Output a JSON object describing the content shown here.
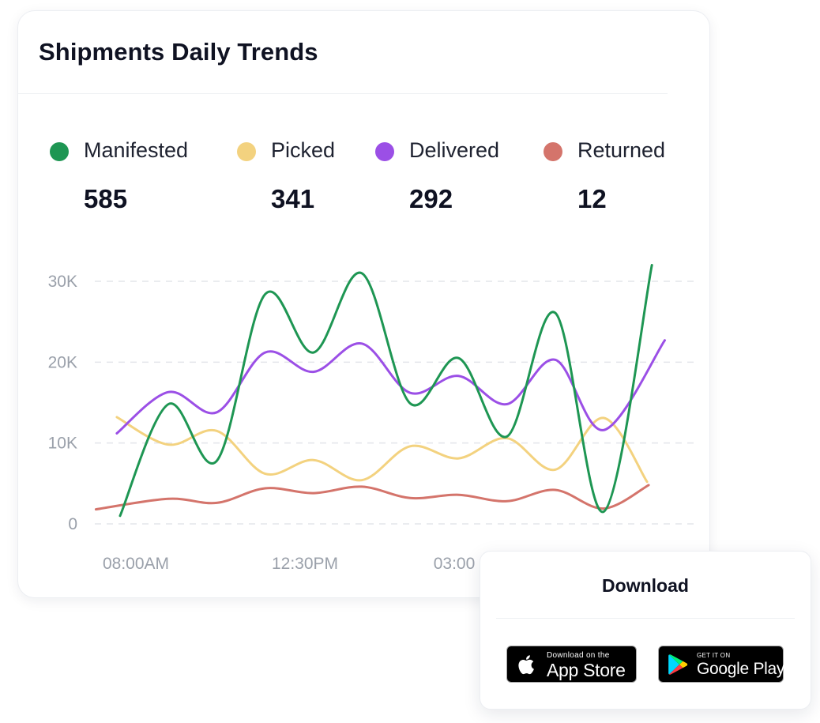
{
  "card": {
    "title": "Shipments Daily Trends"
  },
  "summary": [
    {
      "label": "Manifested",
      "value": "585",
      "color": "#1e9653"
    },
    {
      "label": "Picked",
      "value": "341",
      "color": "#f3d27f"
    },
    {
      "label": "Delivered",
      "value": "292",
      "color": "#9b4fe6"
    },
    {
      "label": "Returned",
      "value": "12",
      "color": "#d4746b"
    }
  ],
  "chart_data": {
    "type": "line",
    "x_tick_labels": [
      "08:00AM",
      "12:30PM",
      "03:00"
    ],
    "y_tick_labels": [
      "30K",
      "20K",
      "10K",
      "0"
    ],
    "ylim": [
      0,
      30000
    ],
    "grid": true,
    "grid_style": "dashed horizontal",
    "legend_placement": "top",
    "series": [
      {
        "name": "Manifested",
        "color": "#1e9653",
        "x": [
          0,
          3,
          6,
          9,
          12,
          15,
          18,
          21,
          24,
          27,
          30,
          33
        ],
        "values": [
          1000,
          14800,
          7800,
          28400,
          21200,
          31000,
          14900,
          20500,
          10800,
          26100,
          1500,
          32000
        ]
      },
      {
        "name": "Picked",
        "color": "#f3d27f",
        "x": [
          -0.2,
          3,
          6,
          9,
          12,
          15,
          18,
          21,
          24,
          27,
          30,
          32.7
        ],
        "values": [
          13200,
          9800,
          11500,
          6200,
          7900,
          5400,
          9600,
          8100,
          10600,
          6700,
          13100,
          5200
        ]
      },
      {
        "name": "Delivered",
        "color": "#9b4fe6",
        "x": [
          -0.2,
          3,
          6,
          9,
          12,
          15,
          18,
          21,
          24,
          27,
          30,
          33.8
        ],
        "values": [
          11200,
          16300,
          13800,
          21200,
          18800,
          22300,
          16200,
          18300,
          14800,
          20300,
          11600,
          22700
        ]
      },
      {
        "name": "Returned",
        "color": "#d4746b",
        "x": [
          -1.5,
          3,
          6,
          9,
          12,
          15,
          18,
          21,
          24,
          27,
          30,
          32.8
        ],
        "values": [
          1800,
          3100,
          2600,
          4400,
          3800,
          4600,
          3200,
          3600,
          2800,
          4200,
          1900,
          4800
        ]
      }
    ]
  },
  "download": {
    "title": "Download",
    "app_store": {
      "small": "Download on the",
      "big": "App Store",
      "icon": "apple-logo-icon"
    },
    "google_play": {
      "small": "GET IT ON",
      "big": "Google Play",
      "icon": "google-play-logo-icon"
    }
  }
}
